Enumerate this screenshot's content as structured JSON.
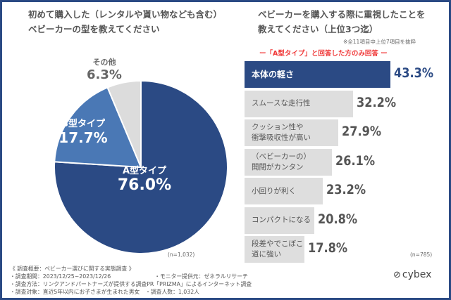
{
  "chart_data": [
    {
      "type": "pie",
      "title": "初めて購入した（レンタルや貰い物なども含む）\nベビーカーの型を教えてください",
      "slices": [
        {
          "label": "A型タイプ",
          "value": 76.0,
          "display": "76.0%",
          "color": "#2b4a84"
        },
        {
          "label": "B型タイプ",
          "value": 17.7,
          "display": "17.7%",
          "color": "#4a78b5"
        },
        {
          "label": "その他",
          "value": 6.3,
          "display": "6.3%",
          "color": "#dcdcdc"
        }
      ],
      "n": "(n=1,032)"
    },
    {
      "type": "bar",
      "orientation": "horizontal",
      "title": "ベビーカーを購入する際に重視したことを\n教えてください（上位3つ迄）",
      "note": "※全11項目中上位7項目を抜粋",
      "subtitle": "ー「A型タイプ」と回答した方のみ回答 ー",
      "categories": [
        "本体の軽さ",
        "スムースな走行性",
        "クッション性や\n衝撃吸収性が高い",
        "（ベビーカーの）\n開閉がカンタン",
        "小回りが利く",
        "コンパクトになる",
        "段差やでこぼこ道に強い"
      ],
      "values": [
        43.3,
        32.2,
        27.9,
        26.1,
        23.2,
        20.8,
        17.8
      ],
      "labels": [
        "43.3%",
        "32.2%",
        "27.9%",
        "26.1%",
        "23.2%",
        "20.8%",
        "17.8%"
      ],
      "highlight_color": "#2b4a84",
      "bar_color": "#dedede",
      "n": "(n=785)"
    }
  ],
  "footer": {
    "lines": [
      "《 調査概要：ベビーカー選びに関する実態調査 》",
      "・調査期間：2023/12/25~2023/12/26",
      "・調査方法：リンクアンドパートナーズが提供する調査PR「PRIZMA」によるインターネット調査",
      "・調査対象：直近5年以内にお子さまが生まれた男女　・調査人数：1,032人"
    ],
    "monitor": "・モニター提供元：ゼネラルリサーチ"
  },
  "logo": "cybex"
}
